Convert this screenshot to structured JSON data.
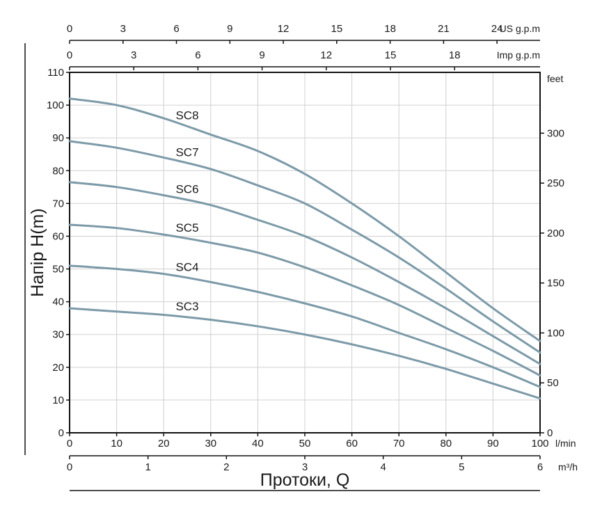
{
  "chart_data": {
    "type": "line",
    "ylabel": "Напір H(m)",
    "xlabel": "Протоки, Q",
    "xlim": [
      0,
      100
    ],
    "ylim": [
      0,
      110
    ],
    "grid": true,
    "x_unit": "l/min",
    "y_right_unit": "feet",
    "y_ticks": [
      0,
      10,
      20,
      30,
      40,
      50,
      60,
      70,
      80,
      90,
      100,
      110
    ],
    "x_ticks": [
      0,
      10,
      20,
      30,
      40,
      50,
      60,
      70,
      80,
      90,
      100
    ],
    "top_axes": [
      {
        "unit": "US g.p.m",
        "ticks": [
          0,
          3,
          6,
          9,
          12,
          15,
          18,
          21,
          24
        ]
      },
      {
        "unit": "Imp g.p.m",
        "ticks": [
          0,
          3,
          6,
          9,
          12,
          15,
          18
        ]
      }
    ],
    "right_axis": {
      "unit": "feet",
      "ticks": [
        0,
        50,
        100,
        150,
        200,
        250,
        300
      ]
    },
    "bottom_axis_m3h": {
      "unit": "m³/h",
      "ticks": [
        0,
        1,
        2,
        3,
        4,
        5,
        6
      ]
    },
    "colors": {
      "curve": "#7c9aa8",
      "grid": "#d0d0d0",
      "frame": "#111111"
    },
    "x": [
      0,
      10,
      20,
      30,
      40,
      50,
      60,
      70,
      80,
      90,
      100
    ],
    "series": [
      {
        "name": "SC8",
        "values": [
          102,
          100,
          96,
          91,
          86,
          79,
          70,
          60,
          49,
          38,
          28
        ]
      },
      {
        "name": "SC7",
        "values": [
          89,
          87,
          84,
          80.5,
          75.5,
          70,
          62,
          53.5,
          44,
          34,
          24.5
        ]
      },
      {
        "name": "SC6",
        "values": [
          76.5,
          75,
          72.5,
          69.5,
          65,
          60,
          53.5,
          46,
          38,
          29.5,
          21
        ]
      },
      {
        "name": "SC5",
        "values": [
          63.5,
          62.5,
          60.5,
          58,
          55,
          50.5,
          45,
          39,
          32,
          25,
          17.5
        ]
      },
      {
        "name": "SC4",
        "values": [
          51,
          50,
          48.5,
          46,
          43,
          39.5,
          35.5,
          30.5,
          25.5,
          20,
          14
        ]
      },
      {
        "name": "SC3",
        "values": [
          38,
          37,
          36,
          34.5,
          32.5,
          30,
          27,
          23.5,
          19.5,
          15,
          10.5
        ]
      }
    ]
  }
}
